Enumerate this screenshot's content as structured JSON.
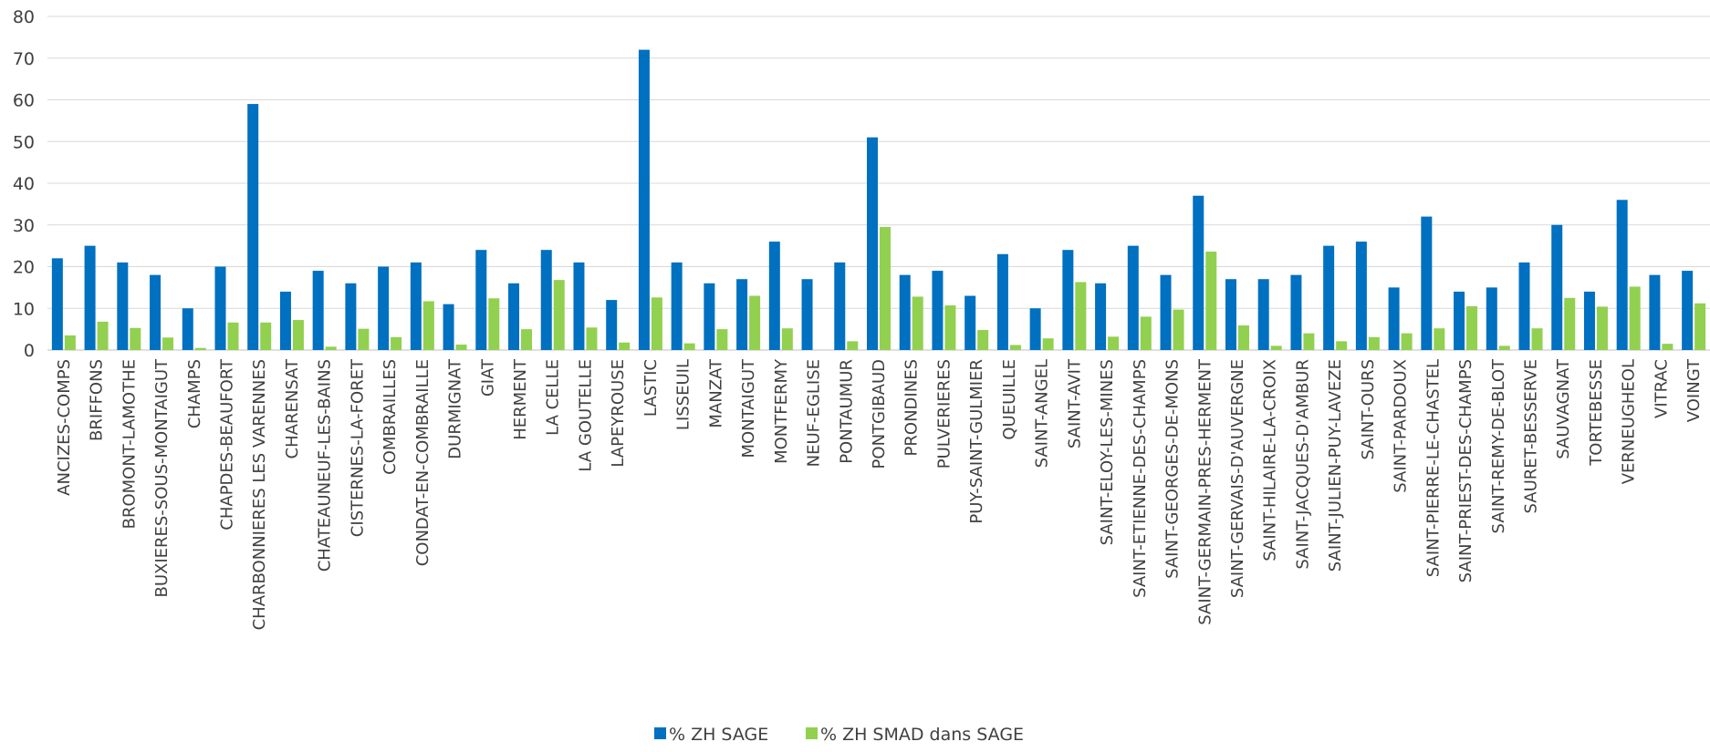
{
  "chart_data": {
    "type": "bar",
    "title": "",
    "xlabel": "",
    "ylabel": "",
    "ylim": [
      0,
      80
    ],
    "yticks": [
      0,
      10,
      20,
      30,
      40,
      50,
      60,
      70,
      80
    ],
    "grid": true,
    "legend_position": "bottom",
    "categories": [
      "ANCIZES-COMPS",
      "BRIFFONS",
      "BROMONT-LAMOTHE",
      "BUXIERES-SOUS-MONTAIGUT",
      "CHAMPS",
      "CHAPDES-BEAUFORT",
      "CHARBONNIERES LES VARENNES",
      "CHARENSAT",
      "CHATEAUNEUF-LES-BAINS",
      "CISTERNES-LA-FORET",
      "COMBRAILLES",
      "CONDAT-EN-COMBRAILLE",
      "DURMIGNAT",
      "GIAT",
      "HERMENT",
      "LA CELLE",
      "LA GOUTELLE",
      "LAPEYROUSE",
      "LASTIC",
      "LISSEUIL",
      "MANZAT",
      "MONTAIGUT",
      "MONTFERMY",
      "NEUF-EGLISE",
      "PONTAUMUR",
      "PONTGIBAUD",
      "PRONDINES",
      "PULVERIERES",
      "PUY-SAINT-GULMIER",
      "QUEUILLE",
      "SAINT-ANGEL",
      "SAINT-AVIT",
      "SAINT-ELOY-LES-MINES",
      "SAINT-ETIENNE-DES-CHAMPS",
      "SAINT-GEORGES-DE-MONS",
      "SAINT-GERMAIN-PRES-HERMENT",
      "SAINT-GERVAIS-D'AUVERGNE",
      "SAINT-HILAIRE-LA-CROIX",
      "SAINT-JACQUES-D'AMBUR",
      "SAINT-JULIEN-PUY-LAVEZE",
      "SAINT-OURS",
      "SAINT-PARDOUX",
      "SAINT-PIERRE-LE-CHASTEL",
      "SAINT-PRIEST-DES-CHAMPS",
      "SAINT-REMY-DE-BLOT",
      "SAURET-BESSERVE",
      "SAUVAGNAT",
      "TORTEBESSE",
      "VERNEUGHEOL",
      "VITRAC",
      "VOINGT"
    ],
    "series": [
      {
        "name": "% ZH SAGE",
        "color": "#0070C0",
        "values": [
          22,
          25,
          21,
          18,
          10,
          20,
          59,
          14,
          19,
          16,
          20,
          21,
          11,
          24,
          16,
          24,
          21,
          12,
          72,
          21,
          16,
          17,
          26,
          17,
          21,
          51,
          18,
          19,
          13,
          23,
          10,
          24,
          16,
          25,
          18,
          37,
          17,
          17,
          18,
          25,
          26,
          15,
          32,
          14,
          15,
          21,
          30,
          14,
          36,
          18,
          19
        ]
      },
      {
        "name": "% ZH SMAD dans SAGE",
        "color": "#92D050",
        "values": [
          3.5,
          6.8,
          5.3,
          3.0,
          0.5,
          6.6,
          6.6,
          7.2,
          0.8,
          5.1,
          3.1,
          11.7,
          1.3,
          12.4,
          5.0,
          16.8,
          5.4,
          1.8,
          12.6,
          1.6,
          5.0,
          13.0,
          5.2,
          0,
          2.1,
          29.5,
          12.8,
          10.7,
          4.8,
          1.2,
          2.8,
          16.3,
          3.2,
          8.0,
          9.7,
          23.6,
          5.9,
          1.0,
          4.0,
          2.1,
          3.1,
          4.0,
          5.2,
          10.5,
          1.0,
          5.2,
          12.5,
          10.4,
          15.2,
          1.5,
          11.2
        ]
      }
    ]
  }
}
